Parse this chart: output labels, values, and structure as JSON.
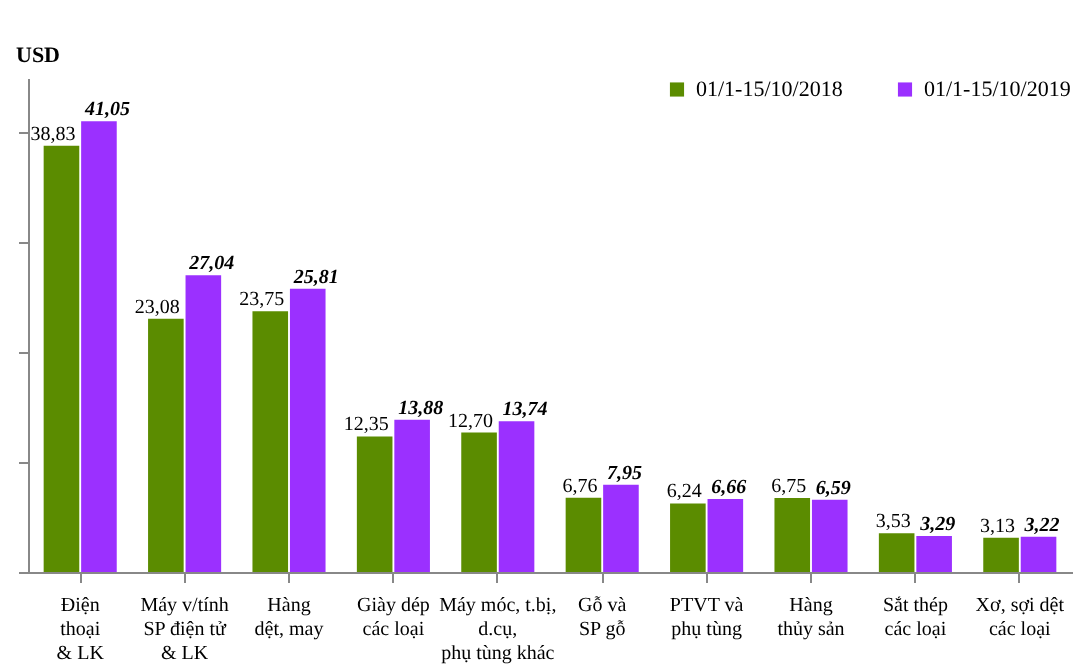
{
  "chart_data": {
    "type": "bar",
    "ylabel": "USD",
    "categories": [
      "Điện\nthoại\n& LK",
      "Máy v/tính\nSP điện tử\n& LK",
      "Hàng\ndệt, may",
      "Giày dép\ncác loại",
      "Máy móc, t.bị,\nd.cụ,\nphụ tùng khác",
      "Gỗ và\nSP gỗ",
      "PTVT và\nphụ tùng",
      "Hàng\nthủy sản",
      "Sắt thép\ncác loại",
      "Xơ, sợi dệt\ncác loại"
    ],
    "series": [
      {
        "name": "01/1-15/10/2018",
        "color": "#5b8c00",
        "values": [
          38.83,
          23.08,
          23.75,
          12.35,
          12.7,
          6.76,
          6.24,
          6.75,
          3.53,
          3.13
        ],
        "value_labels": [
          "38,83",
          "23,08",
          "23,75",
          "12,35",
          "12,70",
          "6,76",
          "6,24",
          "6,75",
          "3,53",
          "3,13"
        ]
      },
      {
        "name": "01/1-15/10/2019",
        "color": "#9b30ff",
        "values": [
          41.05,
          27.04,
          25.81,
          13.88,
          13.74,
          7.95,
          6.66,
          6.59,
          3.29,
          3.22
        ],
        "value_labels": [
          "41,05",
          "27,04",
          "25,81",
          "13,88",
          "13,74",
          "7,95",
          "6,66",
          "6,59",
          "3,29",
          "3,22"
        ]
      }
    ],
    "legend": "top right",
    "tick_labels": "x"
  }
}
